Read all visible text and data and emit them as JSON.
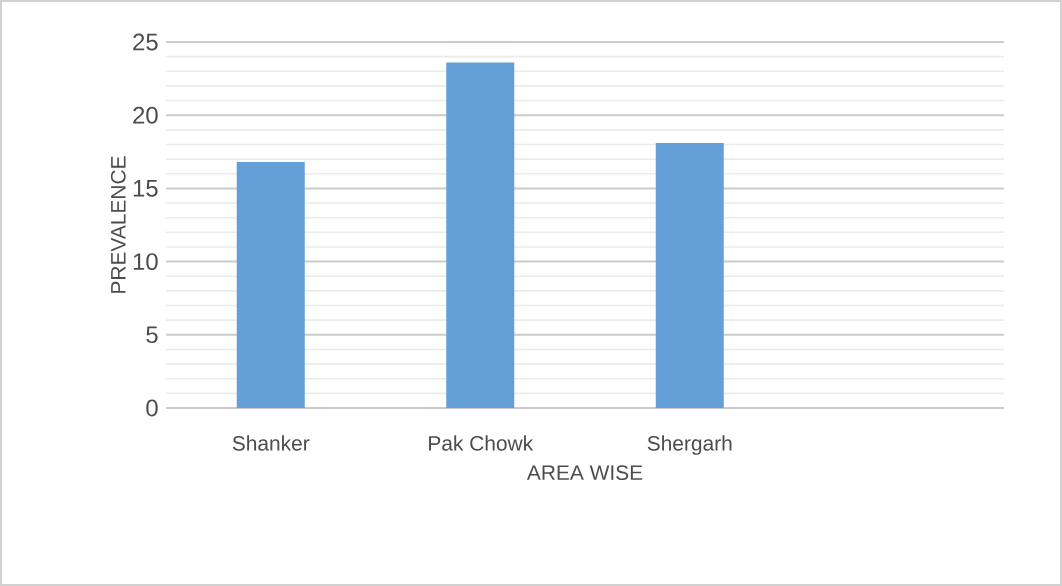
{
  "chart_data": {
    "type": "bar",
    "xlabel": "AREA WISE",
    "ylabel": "PREVALENCE",
    "categories": [
      "Shanker",
      "Pak Chowk",
      "Shergarh",
      null
    ],
    "values": [
      16.8,
      23.6,
      18.1,
      null
    ],
    "color": "#659fd8",
    "ylim": [
      0,
      25
    ],
    "yticks": [
      0,
      5,
      10,
      15,
      20,
      25
    ],
    "grid": "y"
  }
}
